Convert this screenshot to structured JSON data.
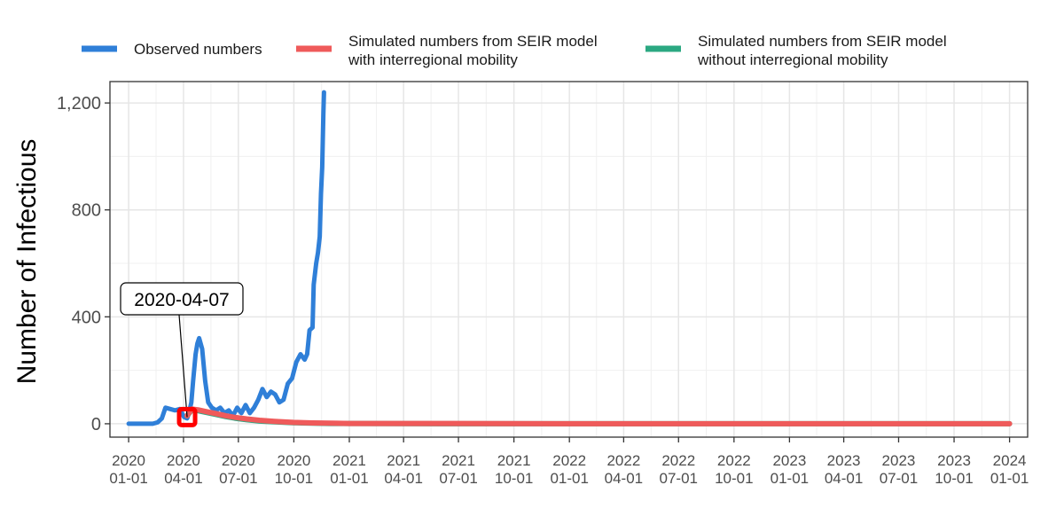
{
  "chart_data": {
    "type": "line",
    "title": "",
    "xlabel": "",
    "ylabel": "Number of Infectious",
    "ylim": [
      -50,
      1280
    ],
    "xlim": [
      "2019-12-01",
      "2024-01-31"
    ],
    "y_ticks": [
      0,
      400,
      800,
      1200
    ],
    "y_tick_labels": [
      "0",
      "400",
      "800",
      "1,200"
    ],
    "x_ticks": [
      {
        "date": "2020-01-01",
        "line1": "2020",
        "line2": "01-01"
      },
      {
        "date": "2020-04-01",
        "line1": "2020",
        "line2": "04-01"
      },
      {
        "date": "2020-07-01",
        "line1": "2020",
        "line2": "07-01"
      },
      {
        "date": "2020-10-01",
        "line1": "2020",
        "line2": "10-01"
      },
      {
        "date": "2021-01-01",
        "line1": "2021",
        "line2": "01-01"
      },
      {
        "date": "2021-04-01",
        "line1": "2021",
        "line2": "04-01"
      },
      {
        "date": "2021-07-01",
        "line1": "2021",
        "line2": "07-01"
      },
      {
        "date": "2021-10-01",
        "line1": "2021",
        "line2": "10-01"
      },
      {
        "date": "2022-01-01",
        "line1": "2022",
        "line2": "01-01"
      },
      {
        "date": "2022-04-01",
        "line1": "2022",
        "line2": "04-01"
      },
      {
        "date": "2022-07-01",
        "line1": "2022",
        "line2": "07-01"
      },
      {
        "date": "2022-10-01",
        "line1": "2022",
        "line2": "10-01"
      },
      {
        "date": "2023-01-01",
        "line1": "2023",
        "line2": "01-01"
      },
      {
        "date": "2023-04-01",
        "line1": "2023",
        "line2": "04-01"
      },
      {
        "date": "2023-07-01",
        "line1": "2023",
        "line2": "07-01"
      },
      {
        "date": "2023-10-01",
        "line1": "2023",
        "line2": "10-01"
      },
      {
        "date": "2024-01-01",
        "line1": "2024",
        "line2": "01-01"
      }
    ],
    "grid": true,
    "legend_position": "top",
    "series": [
      {
        "name": "Observed numbers",
        "color": "#2f7fd8",
        "x": [
          "2020-01-01",
          "2020-01-20",
          "2020-02-10",
          "2020-02-18",
          "2020-02-25",
          "2020-03-02",
          "2020-03-10",
          "2020-03-18",
          "2020-03-26",
          "2020-04-02",
          "2020-04-07",
          "2020-04-10",
          "2020-04-14",
          "2020-04-17",
          "2020-04-21",
          "2020-04-24",
          "2020-04-27",
          "2020-05-02",
          "2020-05-07",
          "2020-05-12",
          "2020-05-18",
          "2020-05-25",
          "2020-06-01",
          "2020-06-08",
          "2020-06-15",
          "2020-06-22",
          "2020-06-29",
          "2020-07-06",
          "2020-07-13",
          "2020-07-20",
          "2020-07-27",
          "2020-08-03",
          "2020-08-10",
          "2020-08-17",
          "2020-08-24",
          "2020-08-31",
          "2020-09-07",
          "2020-09-14",
          "2020-09-21",
          "2020-09-28",
          "2020-10-05",
          "2020-10-12",
          "2020-10-19",
          "2020-10-23",
          "2020-10-27",
          "2020-11-01",
          "2020-11-03",
          "2020-11-07",
          "2020-11-10",
          "2020-11-13",
          "2020-11-15",
          "2020-11-17",
          "2020-11-19",
          "2020-11-20"
        ],
        "y": [
          0,
          0,
          0,
          5,
          20,
          60,
          55,
          50,
          55,
          25,
          20,
          40,
          80,
          160,
          260,
          300,
          320,
          280,
          160,
          80,
          60,
          50,
          60,
          40,
          50,
          30,
          60,
          40,
          70,
          40,
          60,
          90,
          130,
          100,
          120,
          110,
          80,
          90,
          150,
          170,
          230,
          260,
          240,
          260,
          350,
          360,
          520,
          600,
          640,
          700,
          860,
          960,
          1160,
          1240
        ]
      },
      {
        "name": "Simulated numbers from SEIR model with interregional mobility",
        "color": "#ef5a5a",
        "x": [
          "2020-04-07",
          "2020-04-15",
          "2020-04-25",
          "2020-05-10",
          "2020-05-25",
          "2020-06-10",
          "2020-06-25",
          "2020-07-15",
          "2020-08-05",
          "2020-08-30",
          "2020-09-30",
          "2020-11-01",
          "2020-12-01",
          "2021-01-01",
          "2021-06-01",
          "2022-01-01",
          "2022-06-01",
          "2023-01-01",
          "2023-06-01",
          "2024-01-01"
        ],
        "y": [
          30,
          55,
          52,
          45,
          38,
          30,
          24,
          18,
          13,
          9,
          5,
          3,
          2,
          1,
          1,
          0,
          0,
          0,
          0,
          0
        ]
      },
      {
        "name": "Simulated numbers from SEIR model without interregional mobility",
        "color": "#2ba882",
        "x": [
          "2020-04-07",
          "2020-04-15",
          "2020-04-25",
          "2020-05-10",
          "2020-05-25",
          "2020-06-10",
          "2020-06-25",
          "2020-07-15",
          "2020-08-05",
          "2020-08-30",
          "2020-09-30",
          "2020-11-01",
          "2020-12-01",
          "2021-01-01",
          "2021-06-01",
          "2022-01-01",
          "2022-06-01",
          "2023-01-01",
          "2023-06-01",
          "2024-01-01"
        ],
        "y": [
          30,
          52,
          49,
          42,
          35,
          27,
          21,
          15,
          10,
          7,
          4,
          2,
          1,
          1,
          0,
          0,
          0,
          0,
          0,
          0
        ]
      }
    ],
    "legend": [
      {
        "line1": "Observed numbers",
        "line2": "",
        "color": "#2f7fd8"
      },
      {
        "line1": "Simulated numbers from SEIR model",
        "line2": "with interregional mobility",
        "color": "#ef5a5a"
      },
      {
        "line1": "Simulated numbers from SEIR model",
        "line2": "without interregional mobility",
        "color": "#2ba882"
      }
    ],
    "annotation": {
      "text": "2020-04-07",
      "date": "2020-04-07",
      "value": 25,
      "marker_color": "#ff0000"
    }
  }
}
